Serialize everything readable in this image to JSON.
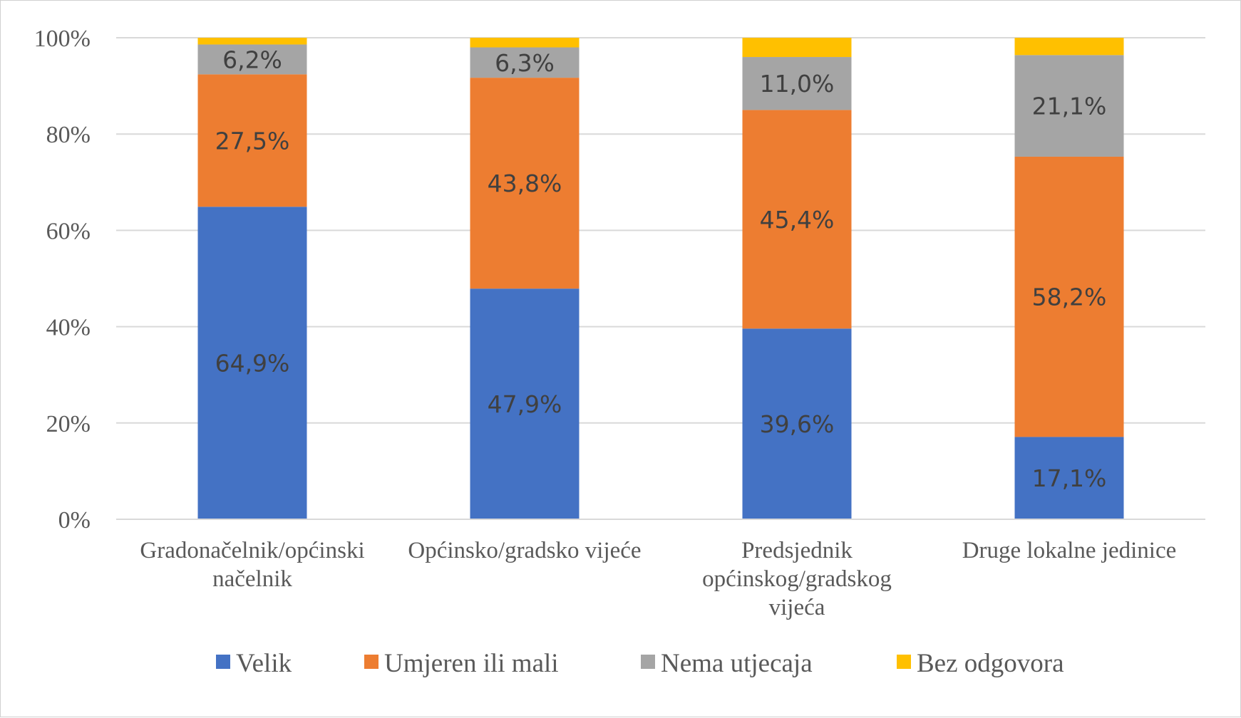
{
  "chart_data": {
    "type": "bar",
    "stacked": true,
    "percent": true,
    "categories": [
      [
        "Gradonačelnik/općinski",
        "načelnik"
      ],
      [
        "Općinsko/gradsko vijeće"
      ],
      [
        "Predsjednik",
        "općinskog/gradskog",
        "vijeća"
      ],
      [
        "Druge lokalne jedinice"
      ]
    ],
    "series": [
      {
        "name": "Velik",
        "color": "#4472C4",
        "values": [
          64.9,
          47.9,
          39.6,
          17.1
        ],
        "labels": [
          "64,9%",
          "47,9%",
          "39,6%",
          "17,1%"
        ]
      },
      {
        "name": "Umjeren ili mali",
        "color": "#ED7D31",
        "values": [
          27.5,
          43.8,
          45.4,
          58.2
        ],
        "labels": [
          "27,5%",
          "43,8%",
          "45,4%",
          "58,2%"
        ]
      },
      {
        "name": "Nema utjecaja",
        "color": "#A5A5A5",
        "values": [
          6.2,
          6.3,
          11.0,
          21.1
        ],
        "labels": [
          "6,2%",
          "6,3%",
          "11,0%",
          "21,1%"
        ]
      },
      {
        "name": "Bez odgovora",
        "color": "#FFC000",
        "values": [
          1.4,
          2.0,
          4.0,
          3.6
        ],
        "labels": [
          "",
          "",
          "",
          ""
        ]
      }
    ],
    "yticks": [
      "0%",
      "20%",
      "40%",
      "60%",
      "80%",
      "100%"
    ],
    "ylim": [
      0,
      100
    ],
    "grid": true,
    "legend_position": "bottom",
    "title": "",
    "xlabel": "",
    "ylabel": ""
  }
}
